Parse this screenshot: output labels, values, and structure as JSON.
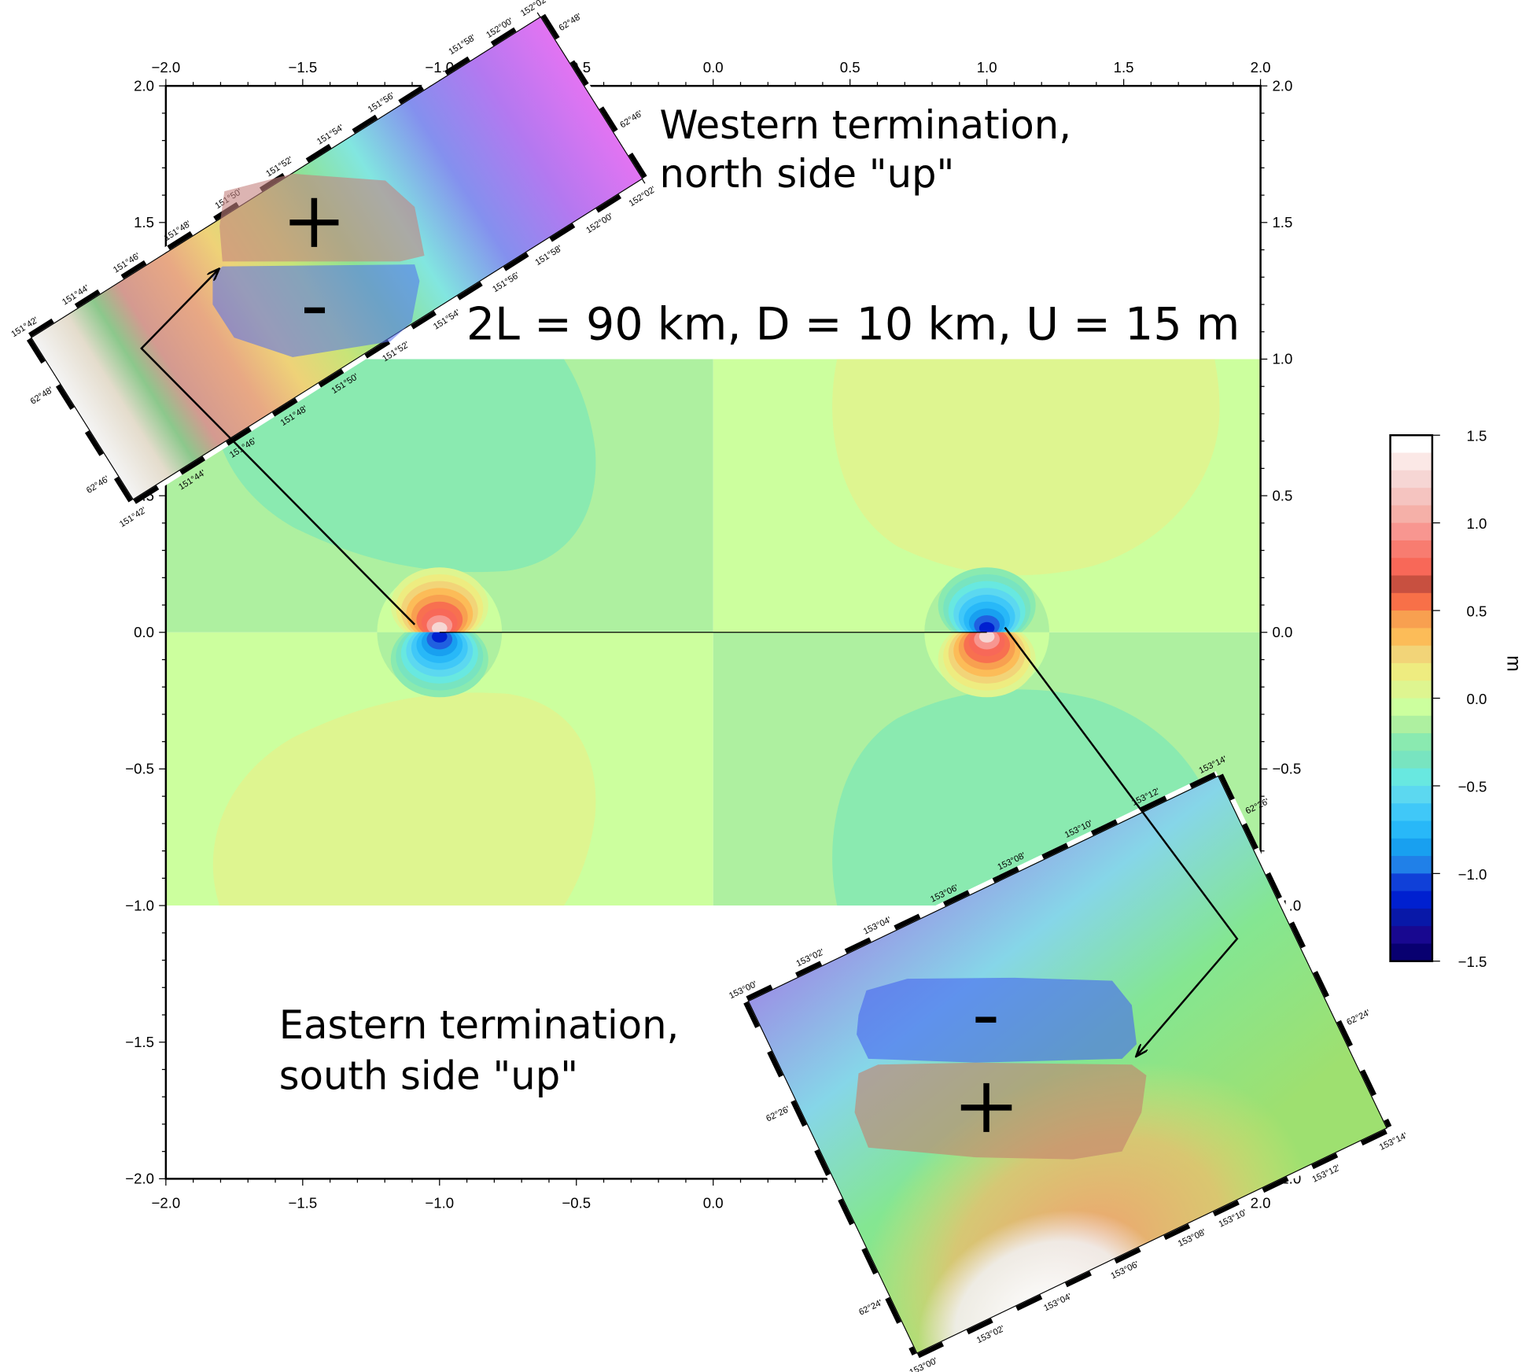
{
  "annotations": {
    "western_line1": "Western termination,",
    "western_line2": "north side \"up\"",
    "params": "2L = 90 km, D = 10 km, U = 15 m",
    "eastern_line1": "Eastern termination,",
    "eastern_line2": "south side \"up\"",
    "plus": "+",
    "minus": "-"
  },
  "chart_data": {
    "type": "heatmap",
    "xlim": [
      -2,
      2
    ],
    "ylim": [
      -2,
      2
    ],
    "field_extent": {
      "x": [
        -2,
        2
      ],
      "y": [
        -1,
        1
      ]
    },
    "grid": false,
    "xtick_labels": [
      "−2.0",
      "−1.5",
      "−1.0",
      "−0.5",
      "0.0",
      "0.5",
      "1.0",
      "1.5",
      "2.0"
    ],
    "xticks": [
      -2,
      -1.5,
      -1,
      -0.5,
      0,
      0.5,
      1,
      1.5,
      2
    ],
    "ytick_labels": [
      "2.0",
      "1.5",
      "1.0",
      "0.5",
      "0.0",
      "−0.5",
      "−1.0",
      "−1.5",
      "−2.0"
    ],
    "yticks": [
      2,
      1.5,
      1,
      0.5,
      0,
      -0.5,
      -1,
      -1.5,
      -2
    ],
    "fault": {
      "x": [
        -1,
        1
      ],
      "y": 0
    },
    "terminations": [
      {
        "x": -1,
        "y": 0,
        "north_side": "positive",
        "south_side": "negative"
      },
      {
        "x": 1,
        "y": 0,
        "north_side": "negative",
        "south_side": "positive"
      }
    ],
    "colorbar": {
      "label": "m",
      "range": [
        -1.5,
        1.5
      ],
      "placement": "right",
      "tick_labels": [
        "1.5",
        "1.0",
        "0.5",
        "0.0",
        "−0.5",
        "−1.0",
        "−1.5"
      ],
      "ticks": [
        1.5,
        1.0,
        0.5,
        0.0,
        -0.5,
        -1.0,
        -1.5
      ],
      "colors_top_to_bottom": [
        "#ffffff",
        "#fbe8e6",
        "#f6d6d4",
        "#f5c4c0",
        "#f5b0a8",
        "#f89690",
        "#f87c70",
        "#f86858",
        "#c85040",
        "#f87048",
        "#f8a050",
        "#fcbc58",
        "#f2d478",
        "#eeec80",
        "#def590",
        "#ccff9e",
        "#aef0a0",
        "#8aeab0",
        "#78e4c0",
        "#68e8e0",
        "#5cd8f0",
        "#40c8f8",
        "#28b8f8",
        "#18a0f0",
        "#2080e8",
        "#1040d8",
        "#0020d0",
        "#0818a8",
        "#180890",
        "#080070"
      ]
    }
  },
  "insets": {
    "western": {
      "top_labels": [
        "151°42'",
        "151°44'",
        "151°46'",
        "151°48'",
        "151°50'",
        "151°52'",
        "151°54'",
        "151°56'",
        "151°58'",
        "152°00'",
        "152°02'"
      ],
      "bottom_labels": [
        "151°42'",
        "151°44'",
        "151°46'",
        "151°48'",
        "151°50'",
        "151°52'",
        "151°54'",
        "151°56'",
        "151°58'",
        "152°00'",
        "152°02'"
      ],
      "left_labels": [
        "62°48'",
        "62°46'"
      ],
      "right_labels": [
        "62°48'",
        "62°46'"
      ]
    },
    "eastern": {
      "top_labels": [
        "153°00'",
        "153°02'",
        "153°04'",
        "153°06'",
        "153°08'",
        "153°10'",
        "153°12'",
        "153°14'"
      ],
      "bottom_labels": [
        "153°00'",
        "153°02'",
        "153°04'",
        "153°06'",
        "153°08'",
        "153°10'",
        "153°12'",
        "153°14'"
      ],
      "left_labels": [
        "62°26'",
        "62°24'"
      ],
      "right_labels": [
        "62°26'",
        "62°24'"
      ]
    }
  }
}
